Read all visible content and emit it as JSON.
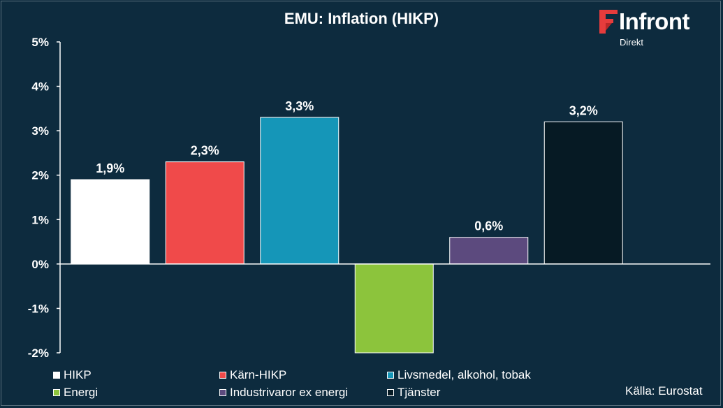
{
  "title": "EMU: Inflation (HIKP)",
  "logo": {
    "word": "Infront",
    "sub": "Direkt",
    "accent": "#e63c3c"
  },
  "source": "Källa:  Eurostat",
  "chart_data": {
    "type": "bar",
    "title": "EMU: Inflation (HIKP)",
    "xlabel": "",
    "ylabel": "",
    "ylim": [
      -2,
      5
    ],
    "yticks": [
      5,
      4,
      3,
      2,
      1,
      0,
      -1,
      -2
    ],
    "ytick_labels": [
      "5%",
      "4%",
      "3%",
      "2%",
      "1%",
      "0%",
      "-1%",
      "-2%"
    ],
    "grid": false,
    "legend_position": "bottom",
    "categories": [
      "HIKP",
      "Kärn-HIKP",
      "Livsmedel, alkohol, tobak",
      "Energi",
      "Industrivaror ex energi",
      "Tjänster"
    ],
    "values": [
      1.9,
      2.3,
      3.3,
      -2.0,
      0.6,
      3.2
    ],
    "data_labels": [
      "1,9%",
      "2,3%",
      "3,3%",
      "",
      "0,6%",
      "3,2%"
    ],
    "colors": [
      "#ffffff",
      "#f04a4a",
      "#1596b8",
      "#8cc43c",
      "#5c4a7e",
      "#061a24"
    ]
  }
}
